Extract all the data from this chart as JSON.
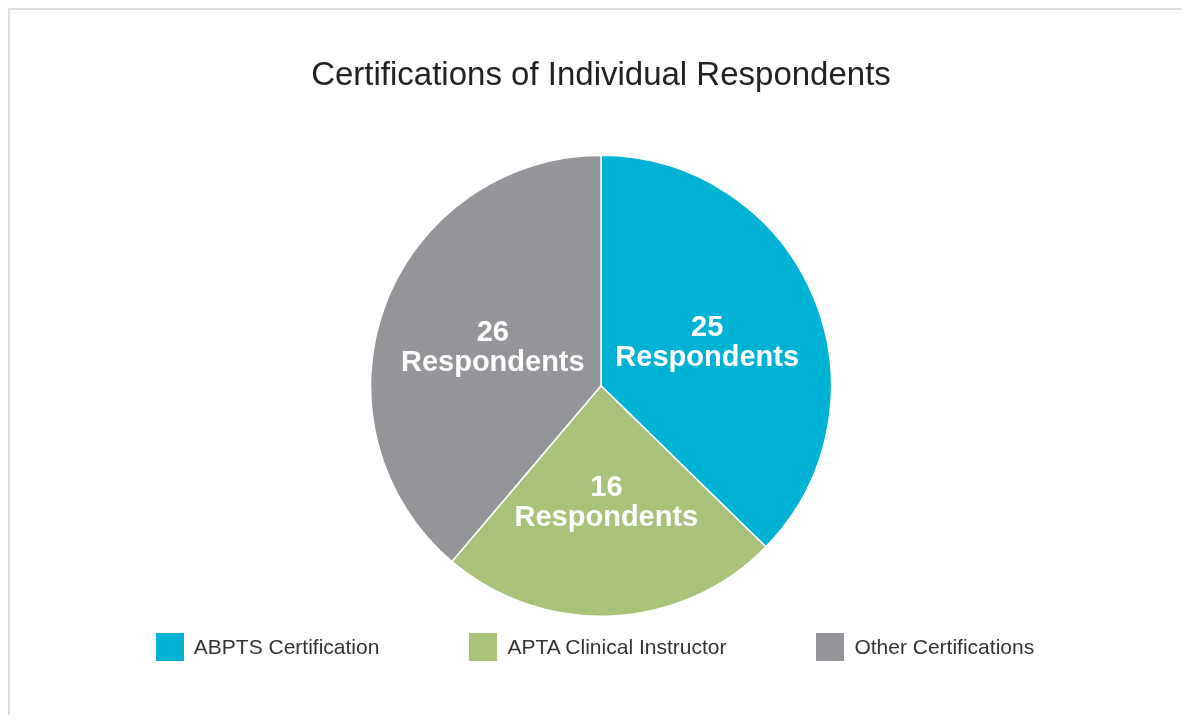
{
  "chart_data": {
    "type": "pie",
    "title": "Certifications of Individual Respondents",
    "categories": [
      "ABPTS Certification",
      "APTA Clinical Instructor",
      "Other Certifications"
    ],
    "values": [
      25,
      16,
      26
    ],
    "colors": [
      "#00b2d3",
      "#a9c27a",
      "#939598"
    ],
    "value_labels": [
      "25 Respondents",
      "16 Respondents",
      "26 Respondents"
    ],
    "legend": "bottom"
  }
}
